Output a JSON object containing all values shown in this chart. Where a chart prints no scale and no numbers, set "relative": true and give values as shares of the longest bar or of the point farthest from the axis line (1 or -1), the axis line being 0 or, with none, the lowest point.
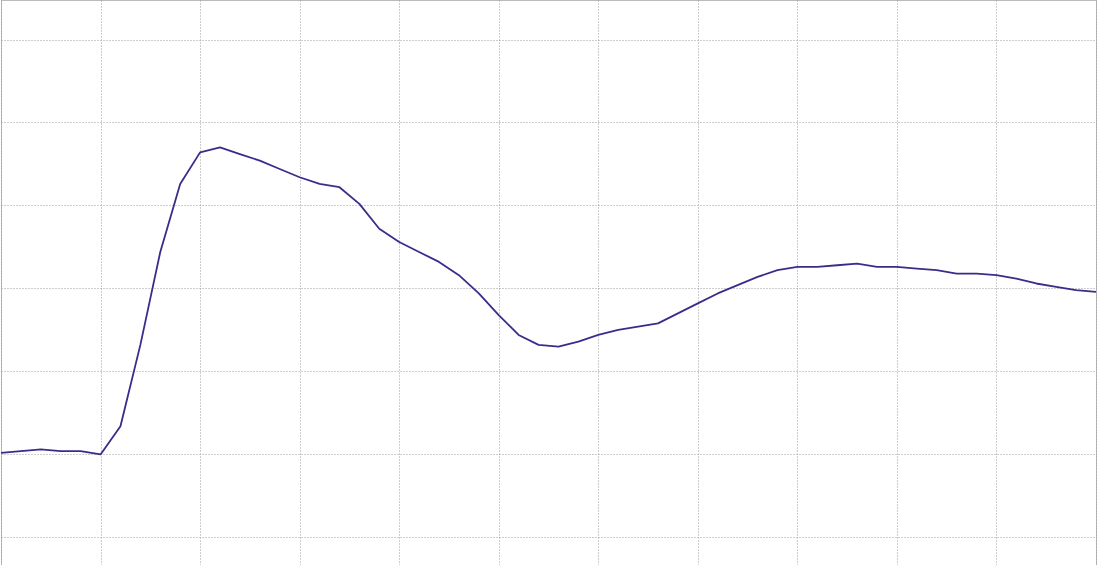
{
  "chart_data": {
    "type": "line",
    "relative": true,
    "grid": true,
    "tick_labels": false,
    "categories": [
      null,
      null,
      null,
      null,
      null,
      null,
      null,
      null,
      null,
      null,
      null,
      null,
      null,
      null,
      null,
      null,
      null,
      null,
      null,
      null,
      null,
      null,
      null,
      null,
      null,
      null,
      null,
      null,
      null,
      null,
      null,
      null,
      null,
      null,
      null,
      null,
      null,
      null,
      null,
      null,
      null,
      null,
      null,
      null,
      null,
      null,
      null,
      null,
      null,
      null,
      null,
      null,
      null,
      null,
      null,
      null
    ],
    "series": [
      {
        "color": "#3d2b8c",
        "values": [
          -0.99,
          -0.98,
          -0.97,
          -0.98,
          -0.98,
          -1.0,
          -0.83,
          -0.34,
          0.22,
          0.63,
          0.82,
          0.85,
          0.81,
          0.77,
          0.72,
          0.67,
          0.63,
          0.61,
          0.51,
          0.36,
          0.28,
          0.22,
          0.16,
          0.08,
          -0.03,
          -0.16,
          -0.28,
          -0.34,
          -0.35,
          -0.32,
          -0.28,
          -0.25,
          -0.23,
          -0.21,
          -0.15,
          -0.09,
          -0.03,
          0.02,
          0.07,
          0.11,
          0.13,
          0.13,
          0.14,
          0.15,
          0.13,
          0.13,
          0.12,
          0.11,
          0.09,
          0.09,
          0.08,
          0.06,
          0.03,
          0.01,
          -0.01,
          -0.02
        ]
      }
    ]
  }
}
